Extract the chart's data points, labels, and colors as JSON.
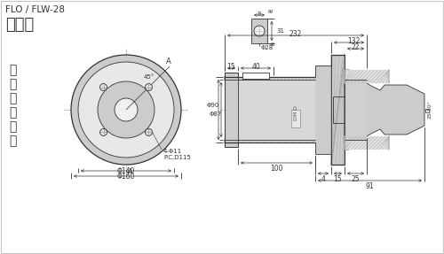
{
  "title": "FLO / FLW-28",
  "subtitle": "法蘭型",
  "side_text": "方型安全夾頭",
  "bg_color": "#ffffff",
  "line_color": "#333333",
  "gray_light": "#e8e8e8",
  "gray_mid": "#cccccc",
  "gray_dark": "#aaaaaa",
  "gray_hatch": "#999999"
}
